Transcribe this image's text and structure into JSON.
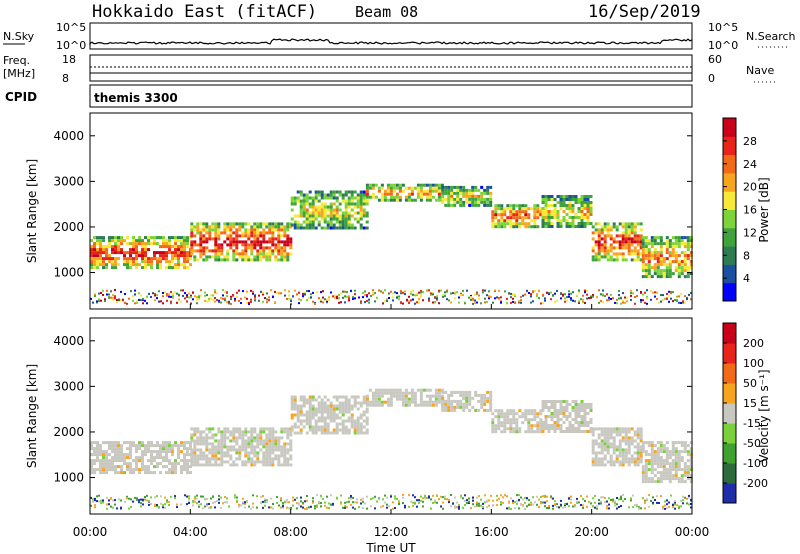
{
  "header": {
    "station": "Hokkaido East (fitACF)",
    "beam": "Beam 08",
    "date": "16/Sep/2019"
  },
  "strip": {
    "nsky_label": "N.Sky",
    "nsky_ticks": [
      "10^5",
      "10^0"
    ],
    "nsearch_label": "N.Search",
    "nsearch_ticks": [
      "10^5",
      "10^0"
    ],
    "freq_label": "Freq.",
    "freq_unit": "[MHz]",
    "freq_ticks": [
      "18",
      "8"
    ],
    "nave_label": "Nave",
    "nave_ticks": [
      "60",
      "0"
    ],
    "cpid_label": "CPID",
    "cpid_value": "themis 3300"
  },
  "chart_data": [
    {
      "type": "heatmap",
      "name": "power",
      "ylabel": "Slant Range [km]",
      "yticks": [
        "4000",
        "3000",
        "2000",
        "1000"
      ],
      "ylim": [
        200,
        4500
      ],
      "colorbar_label": "Power [dB]",
      "colorbar_ticks": [
        "28",
        "24",
        "20",
        "16",
        "12",
        "8",
        "4"
      ],
      "colorbar_colors": [
        "#0000ff",
        "#1b4fa0",
        "#2e7d52",
        "#3da33a",
        "#7cd43a",
        "#f7e83a",
        "#f7a51e",
        "#f26a18",
        "#e8231a",
        "#c8001a"
      ],
      "bands": [
        {
          "x": [
            0,
            4
          ],
          "y": [
            1100,
            1800
          ],
          "level": 0.85
        },
        {
          "x": [
            4,
            8
          ],
          "y": [
            1300,
            2100
          ],
          "level": 0.9
        },
        {
          "x": [
            8,
            11
          ],
          "y": [
            2000,
            2800
          ],
          "level": 0.55
        },
        {
          "x": [
            11,
            14
          ],
          "y": [
            2600,
            2950
          ],
          "level": 0.7
        },
        {
          "x": [
            14,
            16
          ],
          "y": [
            2500,
            2900
          ],
          "level": 0.55
        },
        {
          "x": [
            16,
            18
          ],
          "y": [
            2000,
            2500
          ],
          "level": 0.8
        },
        {
          "x": [
            18,
            20
          ],
          "y": [
            2000,
            2700
          ],
          "level": 0.6
        },
        {
          "x": [
            20,
            22
          ],
          "y": [
            1300,
            2100
          ],
          "level": 0.85
        },
        {
          "x": [
            22,
            24
          ],
          "y": [
            900,
            1800
          ],
          "level": 0.7
        }
      ]
    },
    {
      "type": "heatmap",
      "name": "velocity",
      "ylabel": "Slant Range [km]",
      "yticks": [
        "4000",
        "3000",
        "2000",
        "1000"
      ],
      "ylim": [
        200,
        4500
      ],
      "colorbar_label": "Velocity [m s⁻¹]",
      "colorbar_ticks": [
        "200",
        "100",
        "50",
        "15",
        "-15",
        "-50",
        "-100",
        "-200"
      ],
      "colorbar_colors": [
        "#1f2ea8",
        "#2e6b3c",
        "#3fa12e",
        "#7ad13a",
        "#c8c8c0",
        "#f7a51e",
        "#f26a18",
        "#e8231a",
        "#c8001a"
      ],
      "xlabel": "Time UT",
      "xticks": [
        "00:00",
        "04:00",
        "08:00",
        "12:00",
        "16:00",
        "20:00",
        "00:00"
      ],
      "xlim": [
        0,
        24
      ]
    }
  ]
}
